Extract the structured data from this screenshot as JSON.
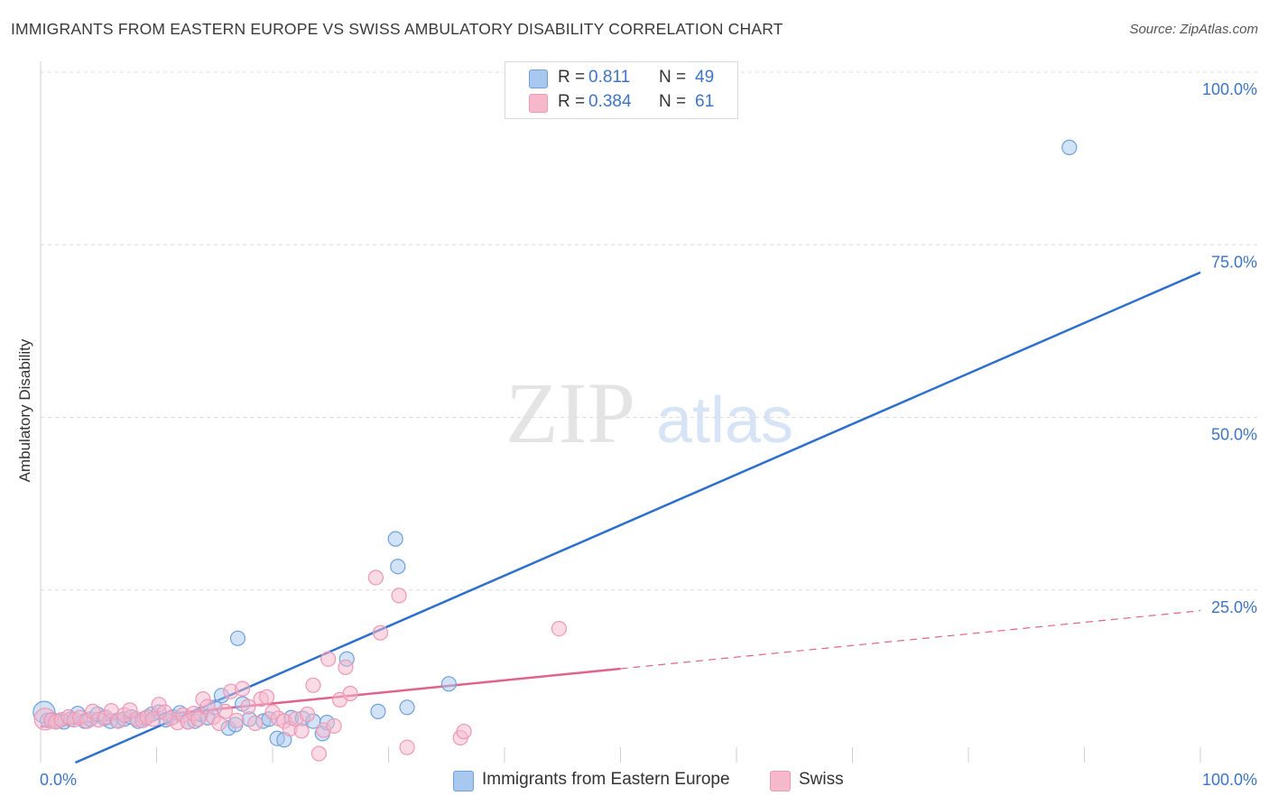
{
  "header": {
    "title": "IMMIGRANTS FROM EASTERN EUROPE VS SWISS AMBULATORY DISABILITY CORRELATION CHART",
    "source": "Source: ZipAtlas.com"
  },
  "watermark": {
    "zip": "ZIP",
    "atlas": "atlas"
  },
  "legend": {
    "rows": [
      {
        "r_label": "R =",
        "r_value": "0.811",
        "n_label": "N =",
        "n_value": "49",
        "color": "#a8c8f0"
      },
      {
        "r_label": "R =",
        "r_value": "0.384",
        "n_label": "N =",
        "n_value": "61",
        "color": "#f6b8cb"
      }
    ]
  },
  "chart_data": {
    "type": "scatter",
    "title": "IMMIGRANTS FROM EASTERN EUROPE VS SWISS AMBULATORY DISABILITY CORRELATION CHART",
    "xlabel": "",
    "ylabel": "Ambulatory Disability",
    "xlim": [
      0,
      100
    ],
    "ylim": [
      0,
      100
    ],
    "x_tick_labels": [
      "0.0%",
      "100.0%"
    ],
    "y_tick_labels": [
      "100.0%",
      "75.0%",
      "50.0%",
      "25.0%"
    ],
    "y_ticks": [
      100,
      75,
      50,
      25
    ],
    "grid": true,
    "legend_position": "top-center",
    "series": [
      {
        "name": "Immigrants from Eastern Europe",
        "color": "#6fa0dc",
        "fill": "#a8c8f0",
        "trend_color": "#2d6fce",
        "trend": {
          "x": [
            3,
            100
          ],
          "y": [
            0.0,
            71.0
          ],
          "dashed_from": null
        },
        "points": [
          [
            0.3,
            7.3
          ],
          [
            0.6,
            6.1
          ],
          [
            1.0,
            6.2
          ],
          [
            1.5,
            6.0
          ],
          [
            2.0,
            5.9
          ],
          [
            2.6,
            6.3
          ],
          [
            3.2,
            7.1
          ],
          [
            3.8,
            6.0
          ],
          [
            4.3,
            6.3
          ],
          [
            4.9,
            7.0
          ],
          [
            5.5,
            6.4
          ],
          [
            6.0,
            6.0
          ],
          [
            6.6,
            6.1
          ],
          [
            7.2,
            6.3
          ],
          [
            7.8,
            6.6
          ],
          [
            8.4,
            6.0
          ],
          [
            9.0,
            6.4
          ],
          [
            9.6,
            7.0
          ],
          [
            10.2,
            7.3
          ],
          [
            10.8,
            6.2
          ],
          [
            11.4,
            6.6
          ],
          [
            12.0,
            7.2
          ],
          [
            12.7,
            5.9
          ],
          [
            13.3,
            6.0
          ],
          [
            13.8,
            7.0
          ],
          [
            14.4,
            6.5
          ],
          [
            15.0,
            8.0
          ],
          [
            15.6,
            9.7
          ],
          [
            16.2,
            5.0
          ],
          [
            16.8,
            5.5
          ],
          [
            17.4,
            8.5
          ],
          [
            17.0,
            18.0
          ],
          [
            18.0,
            6.3
          ],
          [
            19.2,
            6.0
          ],
          [
            19.7,
            6.3
          ],
          [
            20.4,
            3.5
          ],
          [
            21.0,
            3.3
          ],
          [
            21.6,
            6.5
          ],
          [
            22.6,
            6.4
          ],
          [
            23.5,
            6.0
          ],
          [
            24.3,
            4.2
          ],
          [
            24.7,
            5.8
          ],
          [
            26.4,
            15.0
          ],
          [
            29.1,
            7.4
          ],
          [
            30.6,
            32.4
          ],
          [
            30.8,
            28.4
          ],
          [
            31.6,
            8.0
          ],
          [
            35.2,
            11.4
          ],
          [
            88.7,
            89.1
          ]
        ]
      },
      {
        "name": "Swiss",
        "color": "#ee98b4",
        "fill": "#f6b8cb",
        "trend_color": "#e0628e",
        "trend": {
          "x": [
            0,
            100
          ],
          "y": [
            5.2,
            22.0
          ],
          "dashed_from": 50
        },
        "points": [
          [
            0.4,
            6.3
          ],
          [
            0.9,
            6.1
          ],
          [
            1.3,
            5.9
          ],
          [
            1.8,
            6.2
          ],
          [
            2.4,
            6.6
          ],
          [
            2.9,
            6.2
          ],
          [
            3.4,
            6.5
          ],
          [
            4.0,
            6.0
          ],
          [
            4.5,
            7.4
          ],
          [
            5.0,
            6.2
          ],
          [
            5.6,
            6.6
          ],
          [
            6.1,
            7.5
          ],
          [
            6.7,
            6.0
          ],
          [
            7.2,
            6.9
          ],
          [
            7.7,
            7.6
          ],
          [
            8.3,
            6.3
          ],
          [
            8.8,
            6.1
          ],
          [
            9.2,
            6.6
          ],
          [
            9.7,
            6.3
          ],
          [
            10.2,
            8.4
          ],
          [
            10.7,
            7.3
          ],
          [
            11.2,
            6.4
          ],
          [
            11.8,
            5.8
          ],
          [
            12.3,
            6.9
          ],
          [
            12.7,
            5.9
          ],
          [
            13.2,
            7.1
          ],
          [
            13.6,
            6.3
          ],
          [
            14.0,
            9.2
          ],
          [
            14.4,
            8.1
          ],
          [
            14.9,
            6.6
          ],
          [
            15.4,
            5.7
          ],
          [
            15.9,
            7.4
          ],
          [
            16.4,
            10.3
          ],
          [
            16.9,
            6.1
          ],
          [
            17.4,
            10.7
          ],
          [
            17.9,
            8.1
          ],
          [
            18.5,
            5.7
          ],
          [
            19.0,
            9.2
          ],
          [
            19.5,
            9.5
          ],
          [
            20.0,
            7.3
          ],
          [
            20.5,
            6.4
          ],
          [
            21.0,
            6.0
          ],
          [
            21.5,
            4.9
          ],
          [
            22.0,
            6.3
          ],
          [
            22.5,
            4.6
          ],
          [
            23.0,
            7.0
          ],
          [
            23.5,
            11.2
          ],
          [
            24.0,
            1.3
          ],
          [
            24.4,
            4.7
          ],
          [
            24.8,
            15.0
          ],
          [
            25.3,
            5.3
          ],
          [
            25.8,
            9.1
          ],
          [
            26.3,
            13.8
          ],
          [
            26.7,
            10.0
          ],
          [
            28.9,
            26.8
          ],
          [
            29.3,
            18.8
          ],
          [
            30.9,
            24.2
          ],
          [
            31.6,
            2.2
          ],
          [
            36.2,
            3.6
          ],
          [
            36.5,
            4.5
          ],
          [
            44.7,
            19.4
          ]
        ]
      }
    ]
  },
  "bottom_legend": [
    {
      "label": "Immigrants from Eastern Europe",
      "color": "#a8c8f0",
      "border": "#6fa0dc"
    },
    {
      "label": "Swiss",
      "color": "#f6b8cb",
      "border": "#ee98b4"
    }
  ]
}
